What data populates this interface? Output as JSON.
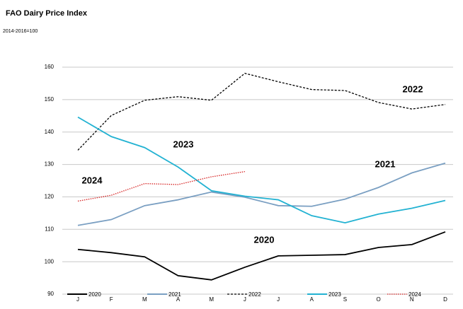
{
  "chart_data": {
    "type": "line",
    "title": "FAO Dairy Price Index",
    "subtitle": "2014-2016=100",
    "categories": [
      "J",
      "F",
      "M",
      "A",
      "M",
      "J",
      "J",
      "A",
      "S",
      "O",
      "N",
      "D"
    ],
    "ylim": [
      90,
      160
    ],
    "yticks": [
      90,
      100,
      110,
      120,
      130,
      140,
      150,
      160
    ],
    "grid": true,
    "legend": "bottom",
    "series": [
      {
        "name": "2020",
        "color": "#000000",
        "dash": "solid",
        "values": [
          103.8,
          102.8,
          101.5,
          95.7,
          94.4,
          98.3,
          101.8,
          102.0,
          102.2,
          104.4,
          105.3,
          109.2
        ]
      },
      {
        "name": "2021",
        "color": "#7a9fc2",
        "dash": "solid",
        "values": [
          111.2,
          113.0,
          117.3,
          119.1,
          121.5,
          119.9,
          117.3,
          117.1,
          119.3,
          122.9,
          127.4,
          130.4
        ]
      },
      {
        "name": "2022",
        "color": "#000000",
        "dash": "dashed",
        "values": [
          134.4,
          145.1,
          149.8,
          150.9,
          149.8,
          158.1,
          155.5,
          153.1,
          152.8,
          149.1,
          147.1,
          148.5
        ]
      },
      {
        "name": "2023",
        "color": "#22b2d2",
        "dash": "solid",
        "values": [
          144.6,
          138.6,
          135.2,
          129.2,
          121.9,
          120.2,
          119.1,
          114.2,
          112.0,
          114.7,
          116.5,
          118.9
        ]
      },
      {
        "name": "2024",
        "color": "#d62020",
        "dash": "dotted",
        "values": [
          118.7,
          120.5,
          124.1,
          123.8,
          126.2,
          127.8,
          null,
          null,
          null,
          null,
          null,
          null
        ]
      }
    ],
    "annotations": [
      "2022",
      "2023",
      "2021",
      "2024",
      "2020"
    ]
  }
}
